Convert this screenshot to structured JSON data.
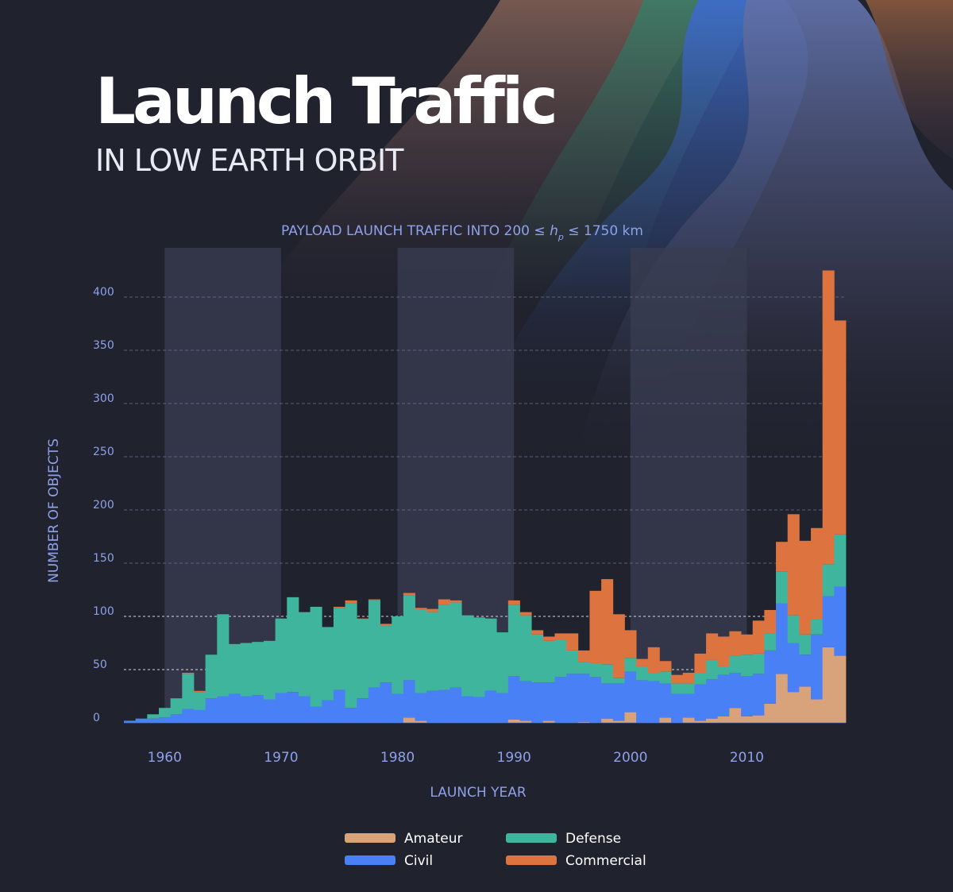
{
  "header": {
    "title": "Launch Traffic",
    "subtitle": "IN LOW EARTH ORBIT"
  },
  "colors": {
    "background": "#20222e",
    "amateur": "#d8a27a",
    "civil": "#4a80f5",
    "defense": "#3fb59e",
    "commercial": "#dd7440",
    "axis_text": "#8fa0ea",
    "highlight_band": "#3a3d52"
  },
  "chart_data": {
    "type": "bar",
    "stacked": true,
    "title": "PAYLOAD LAUNCH TRAFFIC INTO 200 ≤ h_p ≤ 1750 km",
    "title_parts": {
      "prefix": "PAYLOAD LAUNCH TRAFFIC INTO 200 ≤ ",
      "var": "h",
      "sub": "p",
      "suffix": " ≤ 1750 km"
    },
    "xlabel": "LAUNCH YEAR",
    "ylabel": "NUMBER OF OBJECTS",
    "xlim": [
      1956.5,
      2018.5
    ],
    "ylim": [
      0,
      400
    ],
    "x_ticks": [
      1960,
      1970,
      1980,
      1990,
      2000,
      2010
    ],
    "y_ticks": [
      0,
      50,
      100,
      150,
      200,
      250,
      300,
      350,
      400
    ],
    "grid": "horizontal dashed",
    "highlighted_decades": [
      [
        1960,
        1970
      ],
      [
        1980,
        1990
      ],
      [
        2000,
        2010
      ]
    ],
    "legend_position": "bottom-center",
    "x": [
      1957,
      1958,
      1959,
      1960,
      1961,
      1962,
      1963,
      1964,
      1965,
      1966,
      1967,
      1968,
      1969,
      1970,
      1971,
      1972,
      1973,
      1974,
      1975,
      1976,
      1977,
      1978,
      1979,
      1980,
      1981,
      1982,
      1983,
      1984,
      1985,
      1986,
      1987,
      1988,
      1989,
      1990,
      1991,
      1992,
      1993,
      1994,
      1995,
      1996,
      1997,
      1998,
      1999,
      2000,
      2001,
      2002,
      2003,
      2004,
      2005,
      2006,
      2007,
      2008,
      2009,
      2010,
      2011,
      2012,
      2013,
      2014,
      2015,
      2016,
      2017,
      2018
    ],
    "series": [
      {
        "name": "Amateur",
        "color": "#d8a27a",
        "values": [
          0,
          0,
          0,
          0,
          0,
          0,
          0,
          0,
          0,
          0,
          0,
          0,
          0,
          0,
          0,
          0,
          0,
          0,
          0,
          0,
          0,
          0,
          0,
          0,
          5,
          2,
          0,
          0,
          0,
          0,
          0,
          0,
          0,
          3,
          2,
          0,
          2,
          0,
          0,
          1,
          0,
          4,
          2,
          10,
          0,
          0,
          5,
          0,
          5,
          2,
          4,
          6,
          14,
          6,
          7,
          18,
          46,
          29,
          34,
          22,
          71,
          63
        ]
      },
      {
        "name": "Civil",
        "color": "#4a80f5",
        "values": [
          2,
          4,
          4,
          5,
          8,
          13,
          12,
          23,
          25,
          27,
          25,
          26,
          22,
          28,
          29,
          25,
          15,
          21,
          31,
          14,
          23,
          33,
          38,
          27,
          35,
          26,
          30,
          31,
          33,
          25,
          24,
          30,
          28,
          41,
          37,
          38,
          36,
          43,
          46,
          45,
          43,
          33,
          35,
          38,
          40,
          39,
          32,
          27,
          22,
          34,
          37,
          39,
          33,
          38,
          39,
          50,
          66,
          46,
          30,
          61,
          48,
          65
        ]
      },
      {
        "name": "Defense",
        "color": "#3fb59e",
        "values": [
          0,
          0,
          4,
          9,
          15,
          33,
          17,
          41,
          77,
          47,
          50,
          50,
          55,
          70,
          89,
          79,
          94,
          69,
          77,
          98,
          74,
          82,
          53,
          73,
          80,
          78,
          74,
          80,
          80,
          76,
          75,
          68,
          57,
          67,
          62,
          45,
          39,
          35,
          22,
          11,
          13,
          18,
          5,
          13,
          13,
          8,
          11,
          10,
          10,
          11,
          18,
          8,
          16,
          20,
          19,
          16,
          30,
          26,
          19,
          14,
          30,
          49
        ]
      },
      {
        "name": "Commercial",
        "color": "#dd7440",
        "values": [
          0,
          0,
          0,
          0,
          0,
          1,
          1,
          0,
          0,
          0,
          0,
          0,
          0,
          0,
          0,
          0,
          0,
          0,
          1,
          3,
          1,
          1,
          2,
          0,
          2,
          2,
          3,
          5,
          2,
          0,
          0,
          0,
          0,
          4,
          3,
          4,
          4,
          6,
          16,
          11,
          68,
          80,
          60,
          26,
          7,
          24,
          10,
          8,
          10,
          18,
          25,
          28,
          23,
          19,
          31,
          22,
          28,
          95,
          88,
          86,
          276,
          201
        ]
      }
    ]
  },
  "legend": [
    {
      "label": "Amateur",
      "color": "#d8a27a"
    },
    {
      "label": "Defense",
      "color": "#3fb59e"
    },
    {
      "label": "Civil",
      "color": "#4a80f5"
    },
    {
      "label": "Commercial",
      "color": "#dd7440"
    }
  ]
}
